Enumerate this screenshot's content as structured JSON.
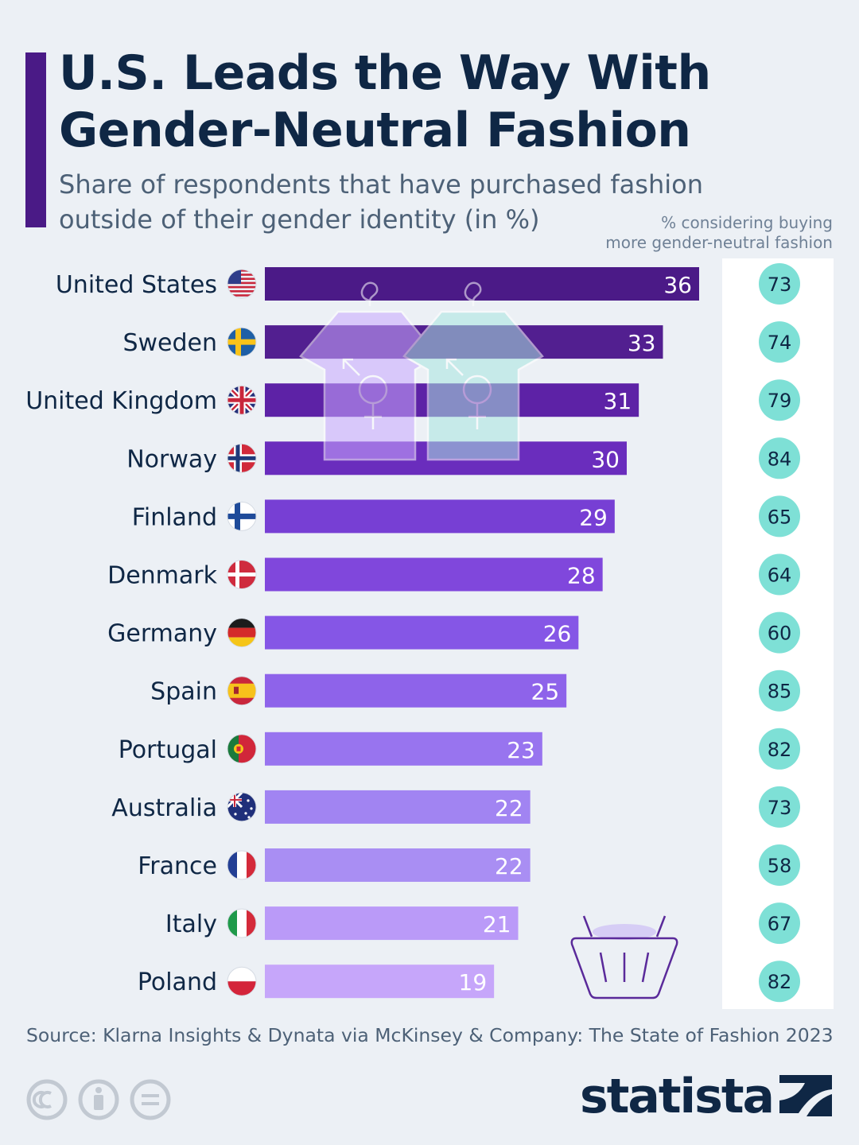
{
  "header": {
    "title_lines": [
      "U.S. Leads the Way With",
      "Gender-Neutral Fashion"
    ],
    "subtitle_lines": [
      "Share of respondents that have purchased fashion",
      "outside of their gender identity (in %)"
    ],
    "side_header_lines": [
      "% considering buying",
      "more gender-neutral fashion"
    ]
  },
  "chart_data": {
    "type": "bar",
    "orientation": "horizontal",
    "categories": [
      "United States",
      "Sweden",
      "United Kingdom",
      "Norway",
      "Finland",
      "Denmark",
      "Germany",
      "Spain",
      "Portugal",
      "Australia",
      "France",
      "Italy",
      "Poland"
    ],
    "series": [
      {
        "values": [
          36,
          33,
          31,
          30,
          29,
          28,
          26,
          25,
          23,
          22,
          22,
          21,
          19
        ]
      },
      {
        "values": [
          73,
          74,
          79,
          84,
          65,
          64,
          60,
          85,
          82,
          73,
          58,
          67,
          82
        ]
      }
    ],
    "flags": [
      "flag-us-icon",
      "flag-se-icon",
      "flag-uk-icon",
      "flag-no-icon",
      "flag-fi-icon",
      "flag-dk-icon",
      "flag-de-icon",
      "flag-es-icon",
      "flag-pt-icon",
      "flag-au-icon",
      "flag-fr-icon",
      "flag-it-icon",
      "flag-pl-icon"
    ],
    "bar_colors": [
      "#4b1a87",
      "#521f90",
      "#5d22a6",
      "#6a2dbd",
      "#773fd4",
      "#8047dc",
      "#8556e6",
      "#8e63ea",
      "#9874ef",
      "#a184f2",
      "#a98ef3",
      "#ba9af8",
      "#c6a6fa"
    ],
    "bubble_color": "#7ee0d6",
    "xlim": [
      0,
      36
    ]
  },
  "footer": {
    "source": "Source: Klarna Insights & Dynata via McKinsey & Company: The State of Fashion 2023",
    "brand": "statista"
  }
}
